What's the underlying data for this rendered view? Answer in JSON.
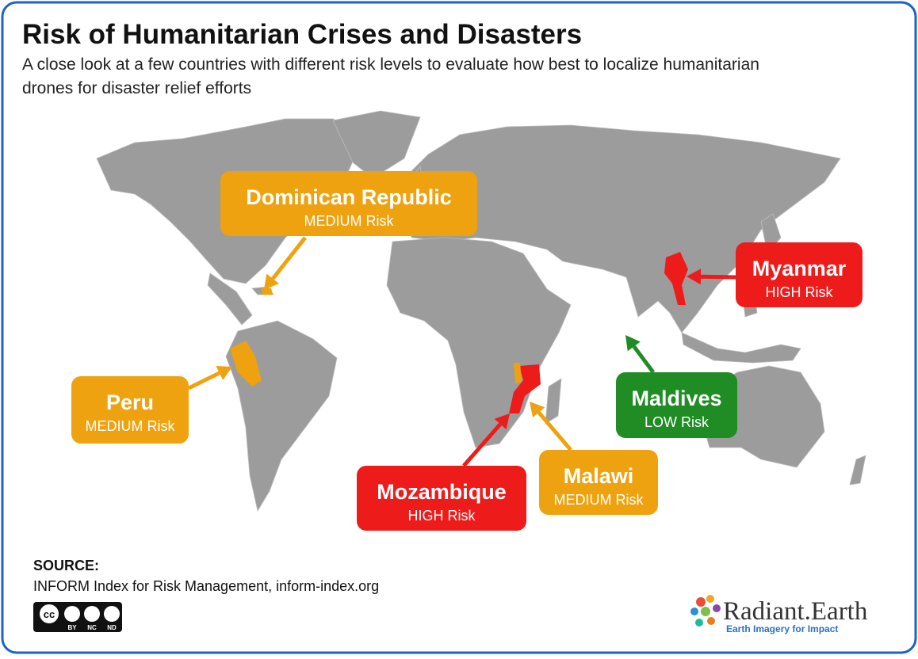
{
  "header": {
    "title": "Risk of Humanitarian Crises and Disasters",
    "subtitle_lines": [
      "A close look at a few countries with different risk levels to evaluate how best to localize humanitarian",
      "drones for disaster relief efforts"
    ]
  },
  "callouts": [
    {
      "name": "Dominican Republic",
      "risk": "MEDIUM Risk",
      "color": "#eea20f"
    },
    {
      "name": "Myanmar",
      "risk": "HIGH Risk",
      "color": "#ee1b1b"
    },
    {
      "name": "Peru",
      "risk": "MEDIUM Risk",
      "color": "#eea20f"
    },
    {
      "name": "Maldives",
      "risk": "LOW Risk",
      "color": "#1f8c24"
    },
    {
      "name": "Mozambique",
      "risk": "HIGH Risk",
      "color": "#ee1b1b"
    },
    {
      "name": "Malawi",
      "risk": "MEDIUM Risk",
      "color": "#eea20f"
    }
  ],
  "source": {
    "label": "SOURCE:",
    "text": "INFORM Index for Risk Management, inform-index.org"
  },
  "license": {
    "badge": "cc",
    "terms": [
      "BY",
      "NC",
      "ND"
    ]
  },
  "logo": {
    "name": "Radiant.Earth",
    "tagline": "Earth Imagery for Impact"
  }
}
